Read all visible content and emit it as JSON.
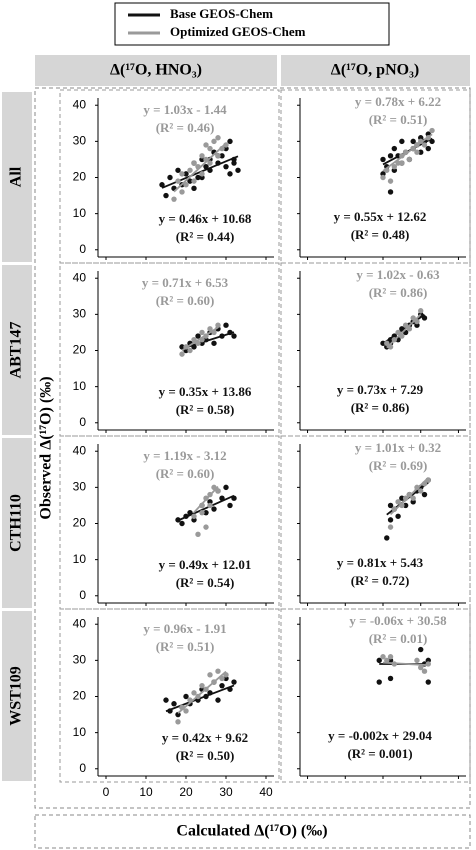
{
  "figure": {
    "legend": [
      {
        "name": "Base GEOS-Chem",
        "color": "#111111"
      },
      {
        "name": "Optimized GEOS-Chem",
        "color": "#9a9a9a"
      }
    ],
    "columns": [
      "Δ(¹⁷O, HNO₃)",
      "Δ(¹⁷O, pNO₃)"
    ],
    "rows": [
      "All",
      "ABT147",
      "CTH110",
      "WST109"
    ],
    "ylabel": "Observed Δ(¹⁷O) (‰)",
    "xlabel": "Calculated Δ(¹⁷O) (‰)"
  },
  "chart_data": [
    {
      "type": "scatter",
      "xlim": [
        -2,
        42
      ],
      "ylim": [
        -2,
        42
      ],
      "xticks": [
        0,
        10,
        20,
        30,
        40
      ],
      "yticks": [
        0,
        10,
        20,
        30,
        40
      ],
      "series": [
        {
          "x": [
            14,
            15,
            16,
            17,
            18,
            19,
            20,
            21,
            22,
            23,
            24,
            25,
            26,
            27,
            28,
            29,
            30,
            30,
            31,
            31,
            32,
            32,
            33,
            28,
            26,
            24,
            22
          ],
          "y": [
            18,
            15,
            20,
            17,
            22,
            18,
            21,
            19,
            24,
            20,
            25,
            23,
            22,
            27,
            24,
            26,
            23,
            28,
            21,
            30,
            25,
            24,
            22,
            26,
            25,
            20,
            17
          ],
          "fit": {
            "slope": 0.46,
            "intercept": 10.68,
            "equation": "y = 0.46x + 10.68",
            "r2": "(R² = 0.44)"
          }
        },
        {
          "x": [
            17,
            18,
            19,
            19,
            20,
            21,
            22,
            22,
            23,
            24,
            24,
            25,
            25,
            26,
            26,
            27,
            28,
            28,
            29,
            30
          ],
          "y": [
            14,
            19,
            16,
            21,
            18,
            22,
            19,
            24,
            23,
            21,
            26,
            25,
            29,
            24,
            28,
            30,
            26,
            31,
            28,
            29
          ],
          "fit": {
            "slope": 1.03,
            "intercept": -1.44,
            "equation": "y = 1.03x - 1.44",
            "r2": "(R² = 0.46)"
          }
        }
      ]
    },
    {
      "type": "scatter",
      "xlim": [
        -2,
        42
      ],
      "ylim": [
        -2,
        42
      ],
      "xticks": [
        0,
        10,
        20,
        30,
        40
      ],
      "yticks": [
        0,
        10,
        20,
        30,
        40
      ],
      "series": [
        {
          "x": [
            20,
            20,
            21,
            22,
            22,
            23,
            23,
            24,
            25,
            25,
            26,
            27,
            28,
            28,
            29,
            30,
            30,
            31,
            32,
            32,
            33
          ],
          "y": [
            21,
            25,
            23,
            26,
            16,
            22,
            28,
            26,
            24,
            30,
            27,
            25,
            30,
            28,
            29,
            27,
            31,
            30,
            28,
            32,
            30
          ],
          "fit": {
            "slope": 0.55,
            "intercept": 12.62,
            "equation": "y = 0.55x + 12.62",
            "r2": "(R² = 0.48)"
          }
        },
        {
          "x": [
            20,
            21,
            22,
            23,
            24,
            25,
            25,
            26,
            27,
            28,
            29,
            29,
            30,
            31,
            32,
            33
          ],
          "y": [
            20,
            22,
            19,
            23,
            24,
            26,
            24,
            27,
            25,
            28,
            29,
            27,
            30,
            29,
            31,
            33
          ],
          "fit": {
            "slope": 0.78,
            "intercept": 6.22,
            "equation": "y = 0.78x + 6.22",
            "r2": "(R² = 0.51)"
          }
        }
      ]
    },
    {
      "type": "scatter",
      "xlim": [
        -2,
        42
      ],
      "ylim": [
        -2,
        42
      ],
      "xticks": [
        0,
        10,
        20,
        30,
        40
      ],
      "yticks": [
        0,
        10,
        20,
        30,
        40
      ],
      "series": [
        {
          "x": [
            19,
            20,
            21,
            22,
            23,
            24,
            25,
            26,
            27,
            28,
            29,
            30,
            31,
            32
          ],
          "y": [
            21,
            20,
            22,
            21,
            24,
            22,
            23,
            25,
            22,
            26,
            24,
            27,
            25,
            24
          ],
          "fit": {
            "slope": 0.35,
            "intercept": 13.86,
            "equation": "y = 0.35x + 13.86",
            "r2": "(R² = 0.58)"
          }
        },
        {
          "x": [
            19,
            20,
            21,
            22,
            23,
            24,
            24,
            25,
            26,
            27,
            28
          ],
          "y": [
            19,
            21,
            20,
            23,
            22,
            25,
            23,
            24,
            26,
            25,
            27
          ],
          "fit": {
            "slope": 0.71,
            "intercept": 6.53,
            "equation": "y = 0.71x + 6.53",
            "r2": "(R² = 0.60)"
          }
        }
      ]
    },
    {
      "type": "scatter",
      "xlim": [
        -2,
        42
      ],
      "ylim": [
        -2,
        42
      ],
      "xticks": [
        0,
        10,
        20,
        30,
        40
      ],
      "yticks": [
        0,
        10,
        20,
        30,
        40
      ],
      "series": [
        {
          "x": [
            20,
            21,
            22,
            22,
            23,
            24,
            25,
            26,
            27,
            28,
            29,
            30,
            31
          ],
          "y": [
            22,
            21,
            23,
            22,
            24,
            23,
            26,
            25,
            27,
            28,
            27,
            30,
            29
          ],
          "fit": {
            "slope": 0.73,
            "intercept": 7.29,
            "equation": "y = 0.73x + 7.29",
            "r2": "(R² = 0.86)"
          }
        },
        {
          "x": [
            21,
            22,
            23,
            24,
            25,
            26,
            27,
            28,
            29,
            30
          ],
          "y": [
            22,
            21,
            23,
            25,
            24,
            27,
            26,
            29,
            28,
            31
          ],
          "fit": {
            "slope": 1.02,
            "intercept": -0.63,
            "equation": "y = 1.02x - 0.63",
            "r2": "(R² = 0.86)"
          }
        }
      ]
    },
    {
      "type": "scatter",
      "xlim": [
        -2,
        42
      ],
      "ylim": [
        -2,
        42
      ],
      "xticks": [
        0,
        10,
        20,
        30,
        40
      ],
      "yticks": [
        0,
        10,
        20,
        30,
        40
      ],
      "series": [
        {
          "x": [
            18,
            19,
            20,
            21,
            22,
            24,
            25,
            26,
            27,
            28,
            29,
            30,
            31,
            32
          ],
          "y": [
            21,
            20,
            22,
            23,
            21,
            25,
            23,
            26,
            24,
            29,
            27,
            30,
            25,
            27
          ],
          "fit": {
            "slope": 0.49,
            "intercept": 12.01,
            "equation": "y = 0.49x + 12.01",
            "r2": "(R² = 0.54)"
          }
        },
        {
          "x": [
            22,
            23,
            24,
            24,
            25,
            25,
            26,
            26,
            27,
            28
          ],
          "y": [
            22,
            17,
            25,
            23,
            27,
            19,
            28,
            25,
            30,
            29
          ],
          "fit": {
            "slope": 1.19,
            "intercept": -3.12,
            "equation": "y = 1.19x - 3.12",
            "r2": "(R² = 0.60)"
          }
        }
      ]
    },
    {
      "type": "scatter",
      "xlim": [
        -2,
        42
      ],
      "ylim": [
        -2,
        42
      ],
      "xticks": [
        0,
        10,
        20,
        30,
        40
      ],
      "yticks": [
        0,
        10,
        20,
        30,
        40
      ],
      "series": [
        {
          "x": [
            21,
            22,
            22,
            23,
            24,
            25,
            26,
            27,
            28,
            29,
            30,
            31,
            32
          ],
          "y": [
            16,
            25,
            21,
            24,
            22,
            27,
            25,
            28,
            26,
            29,
            30,
            28,
            32
          ],
          "fit": {
            "slope": 0.81,
            "intercept": 5.43,
            "equation": "y = 0.81x + 5.43",
            "r2": "(R² = 0.72)"
          }
        },
        {
          "x": [
            22,
            23,
            24,
            25,
            26,
            27,
            28,
            29,
            30,
            31,
            32
          ],
          "y": [
            19,
            24,
            26,
            25,
            27,
            28,
            27,
            30,
            29,
            31,
            32
          ],
          "fit": {
            "slope": 1.01,
            "intercept": 0.32,
            "equation": "y = 1.01x + 0.32",
            "r2": "(R² = 0.69)"
          }
        }
      ]
    },
    {
      "type": "scatter",
      "xlim": [
        -2,
        42
      ],
      "ylim": [
        -2,
        42
      ],
      "xticks": [
        0,
        10,
        20,
        30,
        40
      ],
      "yticks": [
        0,
        10,
        20,
        30,
        40
      ],
      "series": [
        {
          "x": [
            15,
            16,
            17,
            18,
            19,
            20,
            21,
            23,
            24,
            25,
            26,
            27,
            28,
            29,
            30,
            31,
            32
          ],
          "y": [
            19,
            16,
            18,
            15,
            17,
            20,
            18,
            19,
            22,
            20,
            21,
            24,
            19,
            23,
            25,
            22,
            24
          ],
          "fit": {
            "slope": 0.42,
            "intercept": 9.62,
            "equation": "y = 0.42x + 9.62",
            "r2": "(R² = 0.50)"
          }
        },
        {
          "x": [
            18,
            19,
            20,
            21,
            22,
            23,
            24,
            25,
            26,
            27,
            28,
            29,
            30
          ],
          "y": [
            13,
            17,
            16,
            19,
            21,
            20,
            23,
            22,
            26,
            24,
            27,
            25,
            26
          ],
          "fit": {
            "slope": 0.96,
            "intercept": -1.91,
            "equation": "y = 0.96x - 1.91",
            "r2": "(R² = 0.51)"
          }
        }
      ]
    },
    {
      "type": "scatter",
      "xlim": [
        -2,
        42
      ],
      "ylim": [
        -2,
        42
      ],
      "xticks": [
        0,
        10,
        20,
        30,
        40
      ],
      "yticks": [
        0,
        10,
        20,
        30,
        40
      ],
      "series": [
        {
          "x": [
            19,
            19,
            22,
            22,
            30,
            31,
            32,
            32
          ],
          "y": [
            30,
            24,
            30,
            25,
            33,
            29,
            30,
            24
          ],
          "fit": {
            "slope": -0.002,
            "intercept": 29.04,
            "equation": "y = -0.002x + 29.04",
            "r2": "(R² = 0.001)"
          }
        },
        {
          "x": [
            20,
            21,
            22,
            23,
            29,
            30,
            31,
            32
          ],
          "y": [
            31,
            30,
            31,
            29,
            30,
            28,
            27,
            29
          ],
          "fit": {
            "slope": -0.06,
            "intercept": 30.58,
            "equation": "y = -0.06x + 30.58",
            "r2": "(R² = 0.01)"
          }
        }
      ]
    }
  ]
}
